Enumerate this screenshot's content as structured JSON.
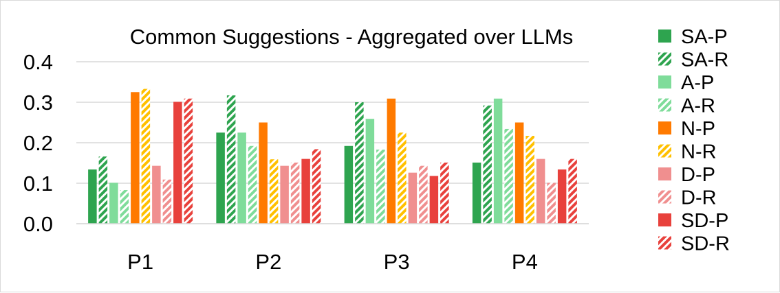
{
  "chart_data": {
    "type": "bar",
    "title": "Common Suggestions - Aggregated over LLMs",
    "xlabel": "",
    "ylabel": "",
    "ylim": [
      0,
      0.4
    ],
    "yticks": [
      "0.0",
      "0.1",
      "0.2",
      "0.3",
      "0.4"
    ],
    "grid": true,
    "legend_position": "right",
    "categories": [
      "P1",
      "P2",
      "P3",
      "P4"
    ],
    "series": [
      {
        "name": "SA-P",
        "color": "#2ea44f",
        "pattern": "solid",
        "values": [
          0.134,
          0.225,
          0.192,
          0.151
        ]
      },
      {
        "name": "SA-R",
        "color": "#2ea44f",
        "pattern": "striped",
        "values": [
          0.166,
          0.317,
          0.3,
          0.292
        ]
      },
      {
        "name": "A-P",
        "color": "#7fdc9a",
        "pattern": "solid",
        "values": [
          0.101,
          0.225,
          0.259,
          0.309
        ]
      },
      {
        "name": "A-R",
        "color": "#7fdc9a",
        "pattern": "striped",
        "values": [
          0.083,
          0.192,
          0.183,
          0.234
        ]
      },
      {
        "name": "N-P",
        "color": "#ff7a00",
        "pattern": "solid",
        "values": [
          0.325,
          0.25,
          0.309,
          0.25
        ]
      },
      {
        "name": "N-R",
        "color": "#ffc000",
        "pattern": "striped",
        "values": [
          0.333,
          0.159,
          0.225,
          0.217
        ]
      },
      {
        "name": "D-P",
        "color": "#f08f8f",
        "pattern": "solid",
        "values": [
          0.143,
          0.143,
          0.126,
          0.16
        ]
      },
      {
        "name": "D-R",
        "color": "#f08f8f",
        "pattern": "striped",
        "values": [
          0.109,
          0.151,
          0.143,
          0.101
        ]
      },
      {
        "name": "SD-P",
        "color": "#e8413c",
        "pattern": "solid",
        "values": [
          0.301,
          0.16,
          0.118,
          0.134
        ]
      },
      {
        "name": "SD-R",
        "color": "#e8413c",
        "pattern": "striped",
        "values": [
          0.309,
          0.184,
          0.151,
          0.16
        ]
      }
    ]
  }
}
